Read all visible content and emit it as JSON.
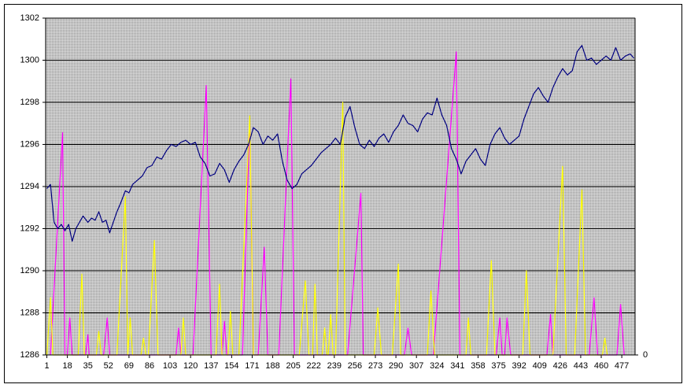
{
  "chart_data": {
    "type": "line",
    "xlim": [
      0,
      488
    ],
    "xticks": [
      1,
      18,
      35,
      52,
      69,
      86,
      103,
      120,
      137,
      154,
      171,
      188,
      205,
      222,
      239,
      256,
      273,
      290,
      307,
      324,
      341,
      358,
      375,
      392,
      409,
      426,
      443,
      460,
      477
    ],
    "ylim": [
      1286,
      1302
    ],
    "yticks": [
      1286,
      1288,
      1290,
      1292,
      1294,
      1296,
      1298,
      1300,
      1302
    ],
    "y2lim": [
      0,
      100
    ],
    "y2ticks": [
      0
    ],
    "grid": true,
    "series": [
      {
        "color": "#000080",
        "x": [
          1,
          4,
          7,
          10,
          13,
          16,
          19,
          22,
          25,
          28,
          31,
          35,
          38,
          41,
          44,
          47,
          50,
          53,
          56,
          59,
          62,
          66,
          69,
          72,
          76,
          80,
          84,
          88,
          92,
          96,
          100,
          104,
          108,
          112,
          116,
          120,
          124,
          128,
          132,
          136,
          140,
          144,
          148,
          152,
          156,
          160,
          164,
          168,
          172,
          176,
          180,
          184,
          188,
          192,
          196,
          200,
          204,
          208,
          212,
          216,
          220,
          224,
          228,
          232,
          236,
          240,
          244,
          248,
          252,
          256,
          260,
          264,
          268,
          272,
          276,
          280,
          284,
          288,
          292,
          296,
          300,
          304,
          308,
          312,
          316,
          320,
          324,
          328,
          332,
          336,
          340,
          344,
          348,
          352,
          356,
          360,
          364,
          368,
          372,
          376,
          380,
          384,
          388,
          392,
          396,
          400,
          404,
          408,
          412,
          416,
          420,
          424,
          428,
          432,
          436,
          440,
          444,
          448,
          452,
          456,
          460,
          464,
          468,
          472,
          476,
          480,
          484,
          487
        ],
        "values": [
          1293.9,
          1294.1,
          1292.3,
          1292.0,
          1292.2,
          1291.9,
          1292.2,
          1291.4,
          1292.0,
          1292.3,
          1292.6,
          1292.3,
          1292.5,
          1292.4,
          1292.8,
          1292.3,
          1292.4,
          1291.8,
          1292.3,
          1292.8,
          1293.2,
          1293.8,
          1293.7,
          1294.1,
          1294.3,
          1294.5,
          1294.9,
          1295.0,
          1295.4,
          1295.3,
          1295.7,
          1296.0,
          1295.9,
          1296.1,
          1296.2,
          1296.0,
          1296.1,
          1295.4,
          1295.1,
          1294.5,
          1294.6,
          1295.1,
          1294.8,
          1294.2,
          1294.8,
          1295.2,
          1295.5,
          1296.0,
          1296.8,
          1296.6,
          1296.0,
          1296.4,
          1296.2,
          1296.5,
          1295.2,
          1294.3,
          1293.9,
          1294.1,
          1294.6,
          1294.8,
          1295.0,
          1295.3,
          1295.6,
          1295.8,
          1296.0,
          1296.3,
          1296.0,
          1297.3,
          1297.8,
          1296.8,
          1296.0,
          1295.8,
          1296.2,
          1295.9,
          1296.3,
          1296.5,
          1296.1,
          1296.6,
          1296.9,
          1297.4,
          1297.0,
          1296.9,
          1296.6,
          1297.2,
          1297.5,
          1297.4,
          1298.2,
          1297.4,
          1296.9,
          1295.8,
          1295.3,
          1294.6,
          1295.2,
          1295.5,
          1295.8,
          1295.3,
          1295.0,
          1296.0,
          1296.5,
          1296.8,
          1296.3,
          1296.0,
          1296.2,
          1296.4,
          1297.2,
          1297.8,
          1298.4,
          1298.7,
          1298.3,
          1298.0,
          1298.7,
          1299.2,
          1299.6,
          1299.3,
          1299.5,
          1300.4,
          1300.7,
          1300.0,
          1300.1,
          1299.8,
          1300.0,
          1300.2,
          1300.0,
          1300.6,
          1300.0,
          1300.2,
          1300.3,
          1300.1
        ]
      },
      {
        "color": "#ff00ff",
        "axis": "y2",
        "x": [
          4,
          14,
          16,
          18,
          20,
          22,
          33,
          35,
          36,
          48,
          51,
          53,
          108,
          110,
          112,
          122,
          133,
          137,
          146,
          148,
          150,
          163,
          169,
          172,
          176,
          181,
          184,
          193,
          203,
          206,
          250,
          261,
          263,
          297,
          300,
          303,
          321,
          340,
          343,
          373,
          376,
          378,
          380,
          382,
          385,
          415,
          418,
          420,
          450,
          454,
          457,
          473,
          476,
          479
        ],
        "values": [
          0,
          66,
          0,
          0,
          11,
          0,
          0,
          6,
          0,
          0,
          11,
          0,
          0,
          8,
          0,
          0,
          80,
          0,
          0,
          10,
          0,
          0,
          70,
          0,
          0,
          32,
          0,
          0,
          82,
          0,
          0,
          48,
          0,
          0,
          8,
          0,
          0,
          90,
          0,
          0,
          11,
          0,
          0,
          11,
          0,
          0,
          12,
          0,
          0,
          17,
          0,
          0,
          15,
          0
        ]
      },
      {
        "color": "#ffff00",
        "axis": "y2",
        "x": [
          1,
          4,
          6,
          27,
          30,
          32,
          42,
          44,
          46,
          59,
          66,
          68,
          70,
          72,
          79,
          81,
          83,
          85,
          90,
          93,
          112,
          114,
          116,
          141,
          144,
          146,
          151,
          153,
          155,
          160,
          169,
          172,
          210,
          215,
          218,
          221,
          223,
          225,
          229,
          231,
          233,
          234,
          236,
          238,
          240,
          246,
          248,
          272,
          275,
          278,
          287,
          292,
          294,
          316,
          319,
          322,
          348,
          350,
          352,
          365,
          369,
          372,
          395,
          398,
          401,
          420,
          428,
          431,
          438,
          444,
          447,
          461,
          463,
          465
        ],
        "values": [
          0,
          17,
          0,
          0,
          24,
          0,
          0,
          7,
          0,
          0,
          47,
          0,
          11,
          0,
          0,
          5,
          0,
          0,
          34,
          0,
          0,
          11,
          0,
          0,
          21,
          0,
          0,
          13,
          0,
          0,
          71,
          0,
          0,
          22,
          0,
          0,
          21,
          0,
          0,
          8,
          0,
          0,
          12,
          0,
          0,
          75,
          0,
          0,
          14,
          0,
          0,
          27,
          0,
          0,
          19,
          0,
          0,
          11,
          0,
          0,
          28,
          0,
          0,
          25,
          0,
          0,
          56,
          0,
          0,
          49,
          0,
          0,
          5,
          0
        ]
      }
    ]
  }
}
